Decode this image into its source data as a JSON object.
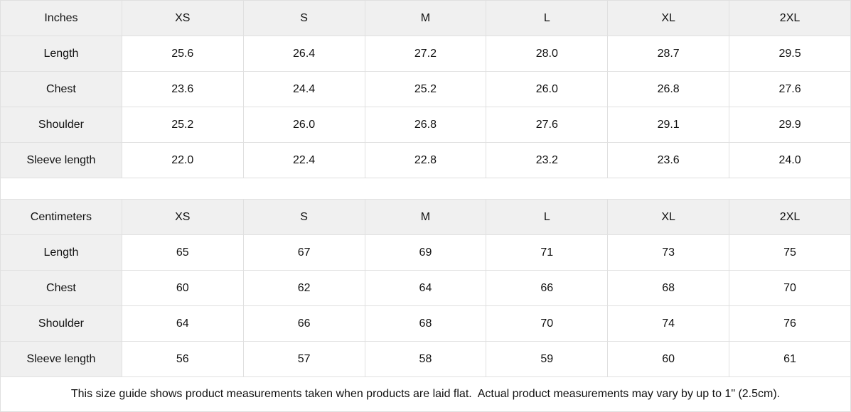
{
  "tables": [
    {
      "unit_label": "Inches",
      "sizes": [
        "XS",
        "S",
        "M",
        "L",
        "XL",
        "2XL"
      ],
      "rows": [
        {
          "label": "Length",
          "values": [
            "25.6",
            "26.4",
            "27.2",
            "28.0",
            "28.7",
            "29.5"
          ]
        },
        {
          "label": "Chest",
          "values": [
            "23.6",
            "24.4",
            "25.2",
            "26.0",
            "26.8",
            "27.6"
          ]
        },
        {
          "label": "Shoulder",
          "values": [
            "25.2",
            "26.0",
            "26.8",
            "27.6",
            "29.1",
            "29.9"
          ]
        },
        {
          "label": "Sleeve length",
          "values": [
            "22.0",
            "22.4",
            "22.8",
            "23.2",
            "23.6",
            "24.0"
          ]
        }
      ]
    },
    {
      "unit_label": "Centimeters",
      "sizes": [
        "XS",
        "S",
        "M",
        "L",
        "XL",
        "2XL"
      ],
      "rows": [
        {
          "label": "Length",
          "values": [
            "65",
            "67",
            "69",
            "71",
            "73",
            "75"
          ]
        },
        {
          "label": "Chest",
          "values": [
            "60",
            "62",
            "64",
            "66",
            "68",
            "70"
          ]
        },
        {
          "label": "Shoulder",
          "values": [
            "64",
            "66",
            "68",
            "70",
            "74",
            "76"
          ]
        },
        {
          "label": "Sleeve length",
          "values": [
            "56",
            "57",
            "58",
            "59",
            "60",
            "61"
          ]
        }
      ]
    }
  ],
  "note": "This size guide shows product measurements taken when products are laid flat.  Actual product measurements may vary by up to 1\" (2.5cm).",
  "colors": {
    "header_bg": "#f0f0f0",
    "border": "#e0e0e0",
    "text": "#111111"
  }
}
